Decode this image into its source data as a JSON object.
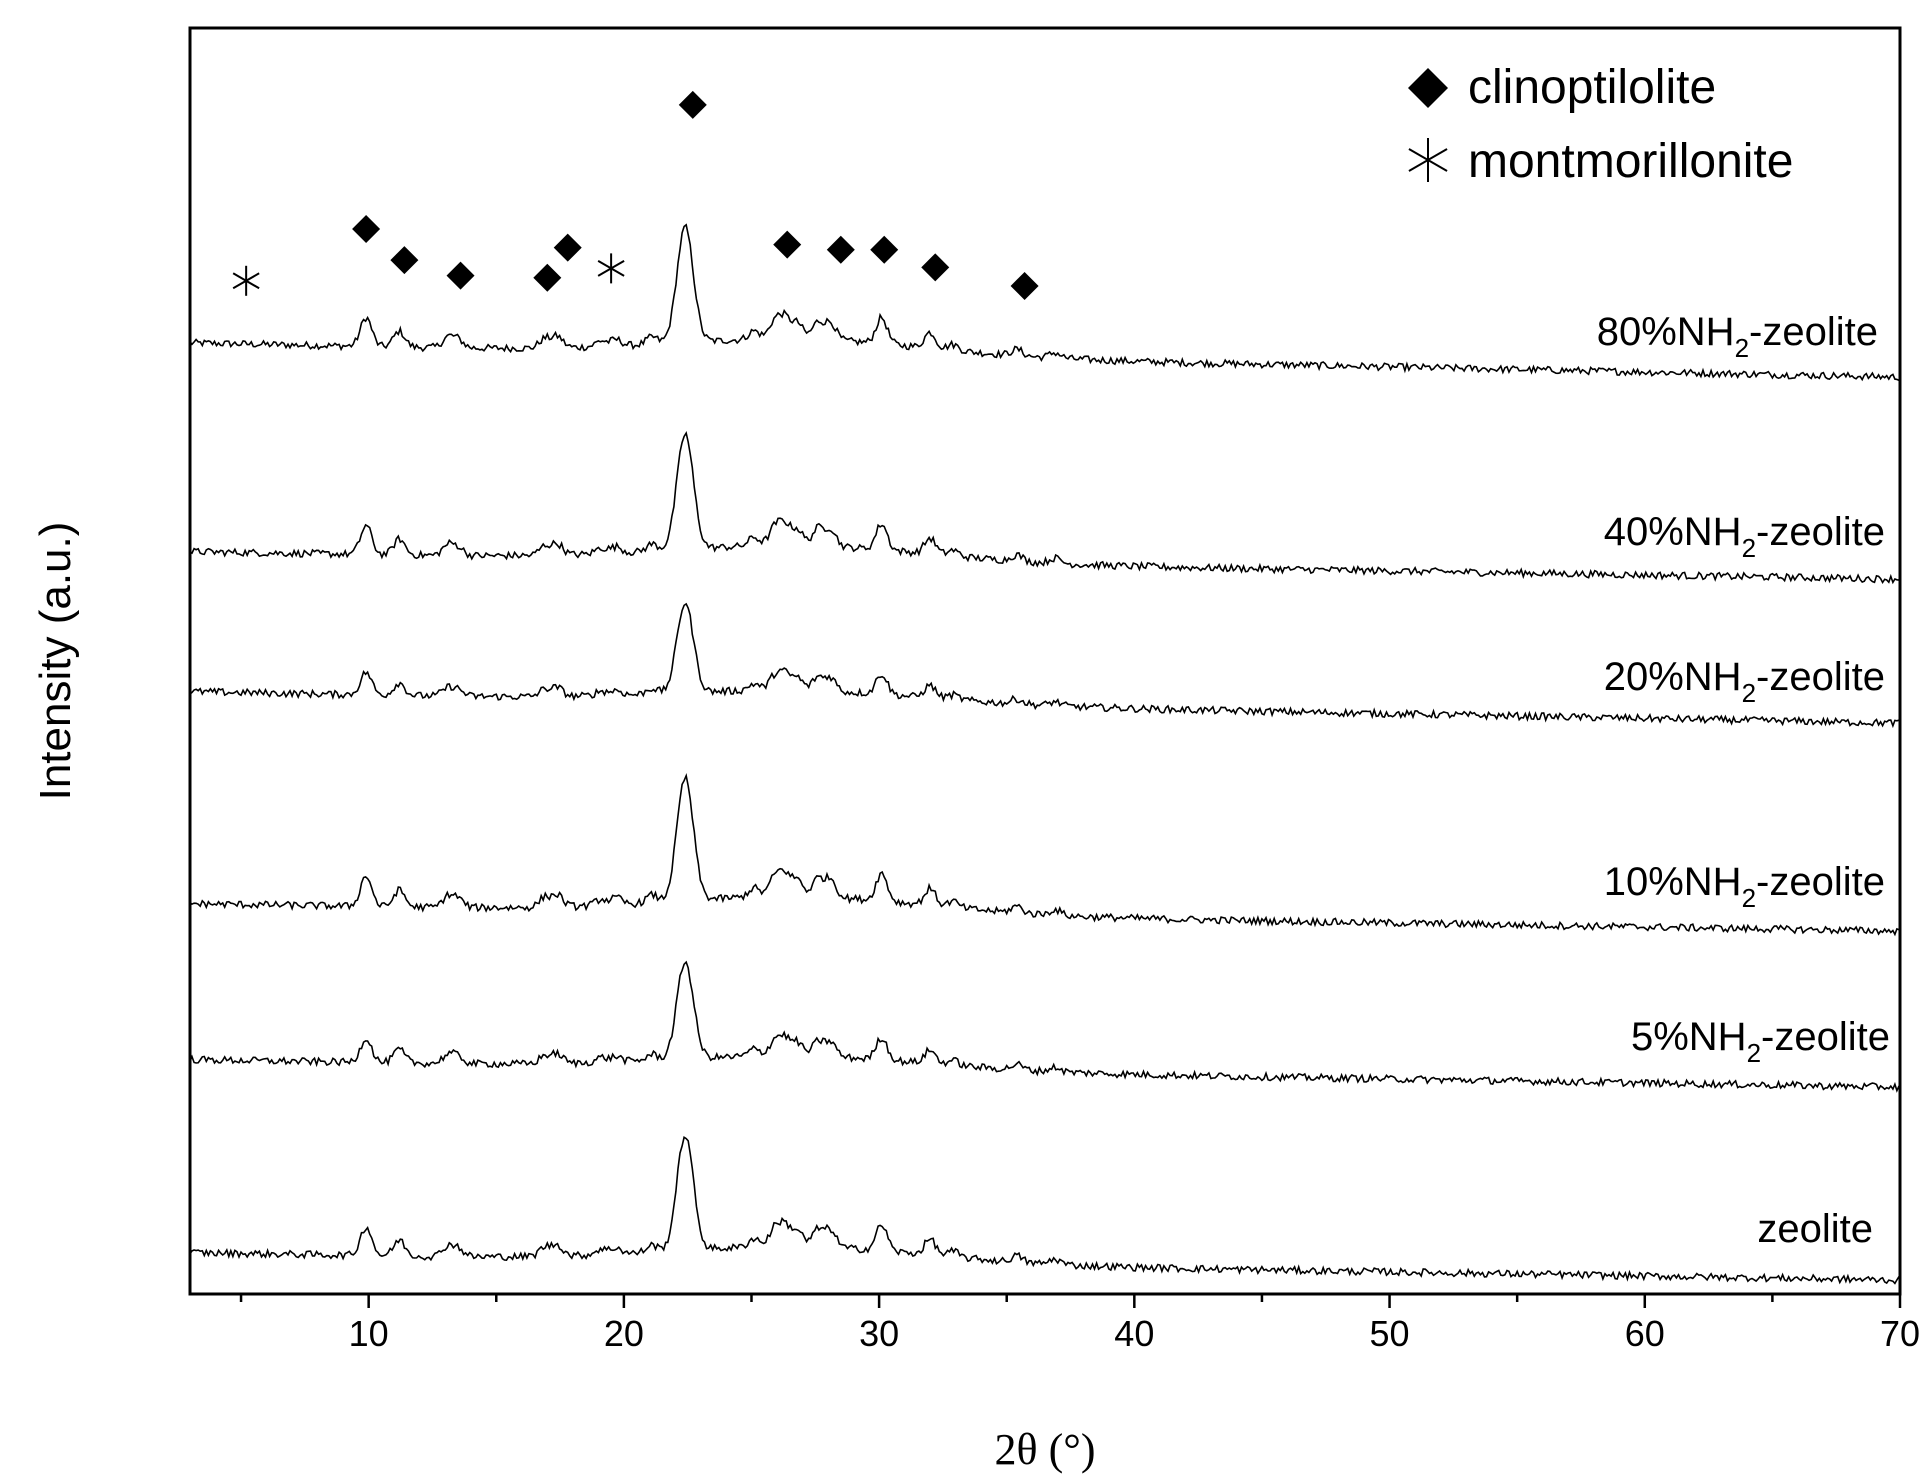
{
  "chart_data": {
    "type": "line",
    "title": "",
    "xlabel": "2θ (°)",
    "ylabel": "Intensity (a.u.)",
    "xlim": [
      3,
      70
    ],
    "xticks": [
      10,
      20,
      30,
      40,
      50,
      60,
      70
    ],
    "xtick_labels": [
      "10",
      "20",
      "30",
      "40",
      "50",
      "60",
      "70"
    ],
    "yticks_shown": false,
    "grid": false,
    "legend_position": "top-right",
    "legend": [
      {
        "label": "clinoptilolite",
        "marker": "filled-diamond"
      },
      {
        "label": "montmorillonite",
        "marker": "asterisk"
      }
    ],
    "peaks": [
      {
        "two_theta": 9.9,
        "rel_height": 1.0
      },
      {
        "two_theta": 11.2,
        "rel_height": 0.55
      },
      {
        "two_theta": 13.1,
        "rel_height": 0.35
      },
      {
        "two_theta": 13.5,
        "rel_height": 0.28
      },
      {
        "two_theta": 16.9,
        "rel_height": 0.32
      },
      {
        "two_theta": 17.4,
        "rel_height": 0.38
      },
      {
        "two_theta": 19.1,
        "rel_height": 0.2
      },
      {
        "two_theta": 19.7,
        "rel_height": 0.22
      },
      {
        "two_theta": 21.1,
        "rel_height": 0.25
      },
      {
        "two_theta": 22.4,
        "rel_height": 4.0
      },
      {
        "two_theta": 25.1,
        "rel_height": 0.3
      },
      {
        "two_theta": 25.9,
        "rel_height": 0.6
      },
      {
        "two_theta": 26.3,
        "rel_height": 0.7
      },
      {
        "two_theta": 26.8,
        "rel_height": 0.55
      },
      {
        "two_theta": 27.6,
        "rel_height": 0.6
      },
      {
        "two_theta": 28.1,
        "rel_height": 0.6
      },
      {
        "two_theta": 30.1,
        "rel_height": 0.9
      },
      {
        "two_theta": 32.0,
        "rel_height": 0.55
      },
      {
        "two_theta": 32.9,
        "rel_height": 0.2
      },
      {
        "two_theta": 35.4,
        "rel_height": 0.22
      },
      {
        "two_theta": 36.9,
        "rel_height": 0.18
      }
    ],
    "series": [
      {
        "name": "80%NH₂-zeolite",
        "label_main": "80%NH",
        "label_sub": "2",
        "label_tail": "-zeolite",
        "baseline_start": 0.78,
        "baseline_end": 0.02,
        "scale": 0.64
      },
      {
        "name": "40%NH₂-zeolite",
        "label_main": "40%NH",
        "label_sub": "2",
        "label_tail": "-zeolite",
        "baseline_start": 0.63,
        "baseline_end": 0.02,
        "scale": 0.64
      },
      {
        "name": "20%NH₂-zeolite",
        "label_main": "20%NH",
        "label_sub": "2",
        "label_tail": "-zeolite",
        "baseline_start": 0.72,
        "baseline_end": 0.02,
        "scale": 0.5
      },
      {
        "name": "10%NH₂-zeolite",
        "label_main": "10%NH",
        "label_sub": "2",
        "label_tail": "-zeolite",
        "baseline_start": 0.63,
        "baseline_end": 0.02,
        "scale": 0.68
      },
      {
        "name": "5%NH₂-zeolite",
        "label_main": "5%NH",
        "label_sub": "2",
        "label_tail": "-zeolite",
        "baseline_start": 0.63,
        "baseline_end": 0.02,
        "scale": 0.54
      },
      {
        "name": "zeolite",
        "label_main": "zeolite",
        "label_sub": "",
        "label_tail": "",
        "baseline_start": 0.63,
        "baseline_end": 0.02,
        "scale": 0.64
      }
    ],
    "annotations": {
      "clinoptilolite_markers": [
        {
          "two_theta": 9.9,
          "height": 1.1
        },
        {
          "two_theta": 11.4,
          "height": 0.8
        },
        {
          "two_theta": 13.6,
          "height": 0.65
        },
        {
          "two_theta": 17.0,
          "height": 0.63
        },
        {
          "two_theta": 17.8,
          "height": 0.92
        },
        {
          "two_theta": 22.7,
          "height": 2.3
        },
        {
          "two_theta": 26.4,
          "height": 0.95
        },
        {
          "two_theta": 28.5,
          "height": 0.9
        },
        {
          "two_theta": 30.2,
          "height": 0.9
        },
        {
          "two_theta": 32.2,
          "height": 0.73
        },
        {
          "two_theta": 35.7,
          "height": 0.55
        }
      ],
      "montmorillonite_markers": [
        {
          "two_theta": 5.2,
          "height": 0.6
        },
        {
          "two_theta": 19.5,
          "height": 0.72
        }
      ]
    }
  }
}
